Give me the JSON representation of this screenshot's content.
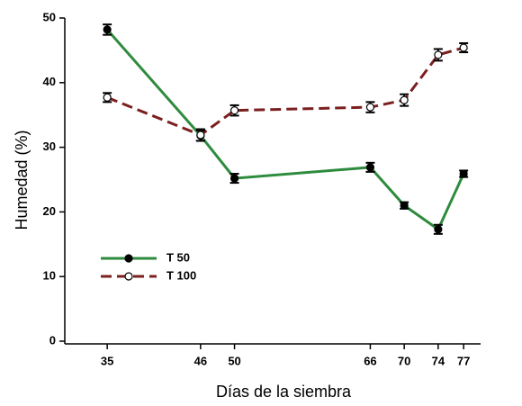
{
  "chart_data": {
    "type": "line",
    "x_label": "Días de la siembra",
    "y_label": "Humedad (%)",
    "x": [
      35,
      46,
      50,
      66,
      70,
      74,
      77
    ],
    "series": [
      {
        "name": "T 50",
        "color": "#2e8b3e",
        "dash": false,
        "marker": "filled",
        "values": [
          48.2,
          31.8,
          25.2,
          26.9,
          21.0,
          17.3,
          25.9
        ],
        "errors": [
          0.8,
          0.8,
          0.7,
          0.7,
          0.5,
          0.7,
          0.5
        ]
      },
      {
        "name": "T 100",
        "color": "#7b1f1f",
        "dash": true,
        "marker": "open",
        "values": [
          37.7,
          31.9,
          35.7,
          36.2,
          37.3,
          44.3,
          45.4
        ],
        "errors": [
          0.7,
          0.9,
          0.8,
          0.8,
          0.9,
          0.9,
          0.7
        ]
      }
    ],
    "xlim": [
      30,
      79
    ],
    "ylim": [
      0,
      50
    ],
    "xticks": [
      35,
      46,
      50,
      66,
      70,
      74,
      77
    ],
    "yticks": [
      0,
      10,
      20,
      30,
      40,
      50
    ],
    "legend": "lower left",
    "grid": false
  }
}
